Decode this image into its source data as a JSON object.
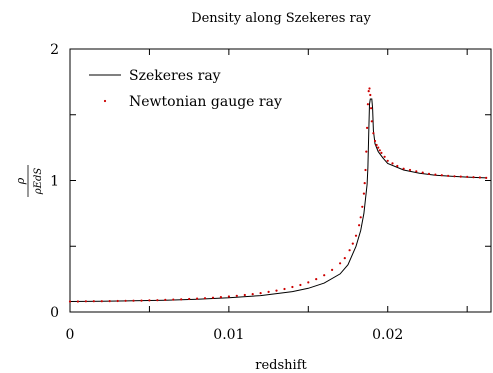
{
  "chart_data": {
    "type": "line",
    "title": "Density along Szekeres ray",
    "xlabel": "redshift",
    "ylabel_num": "ρ",
    "ylabel_den": "ρEdS",
    "xlim": [
      0,
      0.0265
    ],
    "ylim": [
      0,
      2
    ],
    "x_ticks": [
      0,
      0.005,
      0.01,
      0.015,
      0.02,
      0.025
    ],
    "x_tick_labels": [
      "0",
      "",
      "0.01",
      "",
      "0.02",
      ""
    ],
    "y_ticks": [
      0,
      0.5,
      1,
      1.5,
      2
    ],
    "y_tick_labels": [
      "0",
      "",
      "1",
      "",
      "2"
    ],
    "grid": false,
    "legend_position": "top-left",
    "series": [
      {
        "name": "Szekeres ray",
        "style": "solid line",
        "color": "#000000",
        "x": [
          0,
          0.002,
          0.004,
          0.006,
          0.008,
          0.01,
          0.012,
          0.014,
          0.015,
          0.016,
          0.017,
          0.0175,
          0.018,
          0.0183,
          0.0185,
          0.0187,
          0.01875,
          0.0188,
          0.01885,
          0.0189,
          0.019,
          0.01905,
          0.0191,
          0.0192,
          0.0194,
          0.0197,
          0.02,
          0.021,
          0.022,
          0.023,
          0.024,
          0.025,
          0.0262
        ],
        "y": [
          0.08,
          0.082,
          0.085,
          0.09,
          0.097,
          0.108,
          0.125,
          0.155,
          0.18,
          0.22,
          0.29,
          0.36,
          0.5,
          0.62,
          0.75,
          0.97,
          1.1,
          1.35,
          1.58,
          1.62,
          1.62,
          1.55,
          1.38,
          1.28,
          1.22,
          1.17,
          1.13,
          1.08,
          1.055,
          1.04,
          1.032,
          1.026,
          1.02
        ]
      },
      {
        "name": "Newtonian gauge ray",
        "style": "points",
        "color": "#cc0000",
        "x": [
          0,
          0.0005,
          0.001,
          0.0015,
          0.002,
          0.0025,
          0.003,
          0.0035,
          0.004,
          0.0045,
          0.005,
          0.0055,
          0.006,
          0.0065,
          0.007,
          0.0075,
          0.008,
          0.0085,
          0.009,
          0.0095,
          0.01,
          0.0105,
          0.011,
          0.0115,
          0.012,
          0.0125,
          0.013,
          0.0135,
          0.014,
          0.0145,
          0.015,
          0.0155,
          0.016,
          0.0165,
          0.017,
          0.0173,
          0.0176,
          0.0178,
          0.018,
          0.0182,
          0.0183,
          0.0184,
          0.0185,
          0.01855,
          0.0186,
          0.01865,
          0.0187,
          0.01875,
          0.0188,
          0.01885,
          0.0189,
          0.01895,
          0.019,
          0.0191,
          0.0192,
          0.0193,
          0.0194,
          0.0195,
          0.0196,
          0.0198,
          0.02,
          0.0203,
          0.0206,
          0.021,
          0.0214,
          0.0218,
          0.0222,
          0.0226,
          0.023,
          0.0234,
          0.0238,
          0.0242,
          0.0246,
          0.025,
          0.0254,
          0.0258,
          0.0262
        ],
        "y": [
          0.08,
          0.08,
          0.081,
          0.082,
          0.082,
          0.083,
          0.084,
          0.085,
          0.086,
          0.087,
          0.088,
          0.09,
          0.092,
          0.094,
          0.096,
          0.099,
          0.102,
          0.105,
          0.109,
          0.113,
          0.118,
          0.123,
          0.129,
          0.136,
          0.144,
          0.153,
          0.163,
          0.175,
          0.19,
          0.205,
          0.225,
          0.25,
          0.28,
          0.32,
          0.37,
          0.41,
          0.47,
          0.52,
          0.58,
          0.66,
          0.72,
          0.8,
          0.9,
          0.98,
          1.08,
          1.22,
          1.4,
          1.58,
          1.68,
          1.7,
          1.65,
          1.55,
          1.45,
          1.36,
          1.3,
          1.27,
          1.25,
          1.23,
          1.21,
          1.18,
          1.15,
          1.13,
          1.11,
          1.09,
          1.08,
          1.07,
          1.06,
          1.05,
          1.045,
          1.04,
          1.035,
          1.032,
          1.03,
          1.027,
          1.025,
          1.023,
          1.02
        ]
      }
    ]
  }
}
